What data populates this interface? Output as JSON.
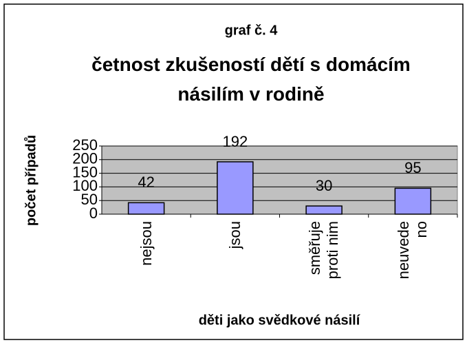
{
  "chart_data": {
    "type": "bar",
    "title": "graf č. 4",
    "subtitle": "četnost zkušeností dětí s domácím násilím v rodině",
    "x_label": "děti jako svědkové násilí",
    "y_label": "počet případů",
    "categories": [
      "nejsou",
      "jsou",
      "směřuje proti nim",
      "neuvede no"
    ],
    "values": [
      42,
      192,
      30,
      95
    ],
    "color": "#9999ff",
    "ylim": [
      0,
      250
    ],
    "yticks": [
      0,
      50,
      100,
      150,
      200,
      250
    ],
    "grid": true
  }
}
